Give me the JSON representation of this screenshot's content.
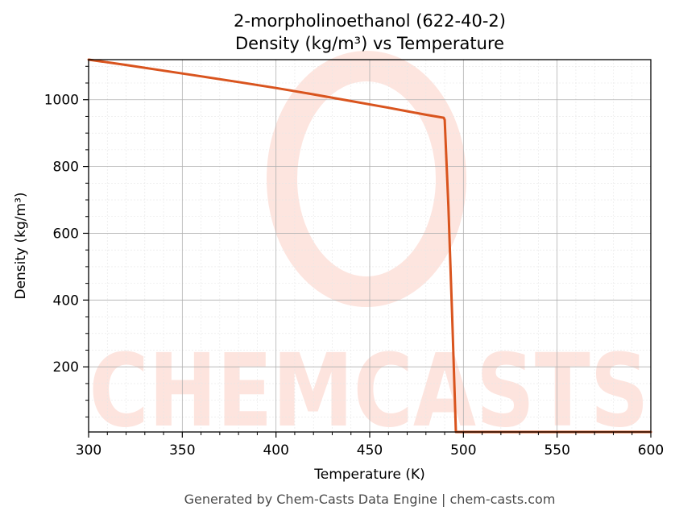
{
  "chart_data": {
    "type": "line",
    "title": "2-morpholinoethanol (622-40-2)",
    "subtitle": "Density (kg/m³) vs Temperature",
    "xlabel": "Temperature (K)",
    "ylabel": "Density (kg/m³)",
    "xlim": [
      300,
      600
    ],
    "ylim": [
      5,
      1120
    ],
    "xticks": [
      300,
      350,
      400,
      450,
      500,
      550,
      600
    ],
    "yticks": [
      200,
      400,
      600,
      800,
      1000
    ],
    "grid": true,
    "series": [
      {
        "color": "#d9541e",
        "x": [
          300,
          320,
          340,
          360,
          380,
          400,
          420,
          440,
          460,
          480,
          489.5,
          490,
          492,
          494,
          496,
          500,
          550,
          600
        ],
        "y": [
          1120,
          1104,
          1087,
          1070,
          1053,
          1035,
          1016,
          996,
          976,
          955,
          946,
          940,
          680,
          350,
          5,
          5,
          5,
          5
        ]
      }
    ]
  },
  "watermark": {
    "text": "CHEMCASTS",
    "color": "#fde0d9"
  },
  "footer": "Generated by Chem-Casts Data Engine | chem-casts.com"
}
